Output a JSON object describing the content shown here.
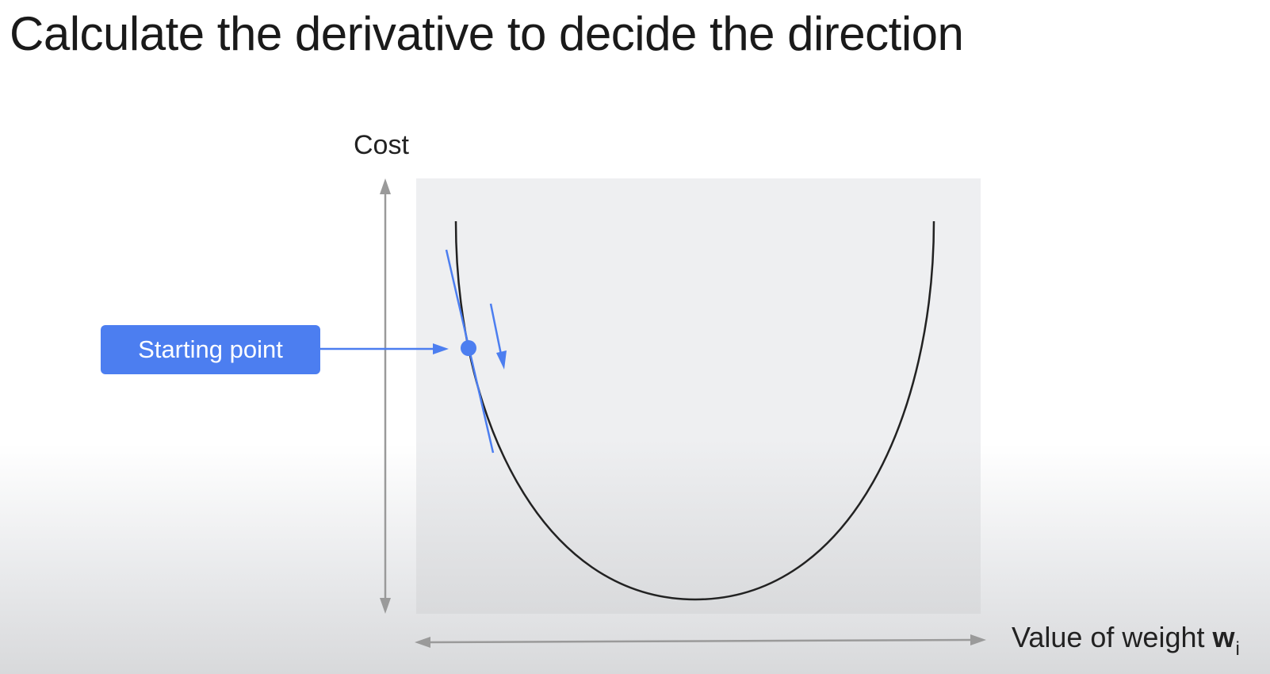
{
  "title": "Calculate the derivative to decide the direction",
  "diagram": {
    "y_axis_label": "Cost",
    "x_axis_label": "Value of weight",
    "x_axis_variable": "w",
    "x_axis_subscript": "i",
    "callout_label": "Starting point",
    "accent_color": "#4c7ef0",
    "curve_color": "#222222",
    "axis_color": "#9a9a9a",
    "plot_background": "#eeeff1"
  }
}
